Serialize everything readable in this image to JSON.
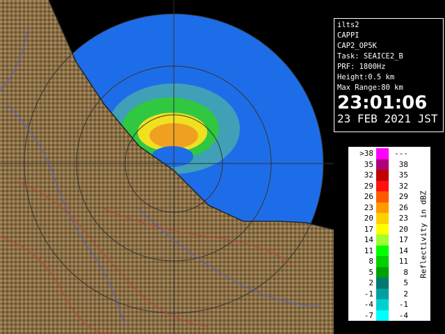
{
  "info": {
    "site": "ilts2",
    "product": "CAPPI",
    "config": "CAP2_OP5K",
    "task": "Task: SEAICE2_B",
    "prf": "PRF: 1800Hz",
    "height": "Height:0.5 km",
    "max_range": "Max Range:80 km",
    "time": "23:01:06",
    "date": "23 FEB 2021 JST"
  },
  "legend": {
    "unit": "Reflectivity in dBZ",
    "rows": [
      {
        "low": ">38",
        "high": "---",
        "color": "#ff00ff"
      },
      {
        "low": "35",
        "high": "38",
        "color": "#b0007a"
      },
      {
        "low": "32",
        "high": "35",
        "color": "#c00000"
      },
      {
        "low": "29",
        "high": "32",
        "color": "#ff1010"
      },
      {
        "low": "26",
        "high": "29",
        "color": "#ff5a00"
      },
      {
        "low": "23",
        "high": "26",
        "color": "#ff9a00"
      },
      {
        "low": "20",
        "high": "23",
        "color": "#ffd000"
      },
      {
        "low": "17",
        "high": "20",
        "color": "#ffff00"
      },
      {
        "low": "14",
        "high": "17",
        "color": "#a0ff30"
      },
      {
        "low": "11",
        "high": "14",
        "color": "#00ff00"
      },
      {
        "low": "8",
        "high": "11",
        "color": "#00d000"
      },
      {
        "low": "5",
        "high": "8",
        "color": "#00a000"
      },
      {
        "low": "2",
        "high": "5",
        "color": "#007a70"
      },
      {
        "low": "-1",
        "high": "2",
        "color": "#00a0a0"
      },
      {
        "low": "-4",
        "high": "-1",
        "color": "#00d0d0"
      },
      {
        "low": "-7",
        "high": "-4",
        "color": "#00ffff"
      }
    ]
  }
}
